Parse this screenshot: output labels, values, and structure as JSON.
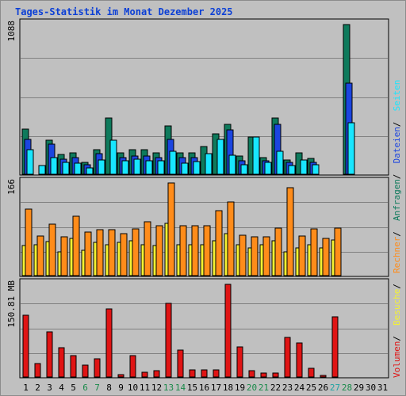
{
  "page": {
    "title": "Tages-Statistik im Monat Dezember 2025"
  },
  "colors": {
    "background": "#c0c0c0",
    "title": "#0b3fd6",
    "grid": "#808080",
    "anfragen": "#0e7a5c",
    "dateien": "#1b45e0",
    "seiten": "#18e6ff",
    "besuche": "#f4f232",
    "rechner": "#ff8c1a",
    "volumen": "#e01414",
    "weekday_label": "#000000",
    "weekend_label": "#1a8a4a",
    "today_label": "#1ea3a3"
  },
  "chart_data": [
    {
      "type": "bar",
      "name": "hits_files_pages",
      "max_label": "1088",
      "ylim": [
        0,
        1088
      ],
      "categories": [
        "1",
        "2",
        "3",
        "4",
        "5",
        "6",
        "7",
        "8",
        "9",
        "10",
        "11",
        "12",
        "13",
        "14",
        "15",
        "16",
        "17",
        "18",
        "19",
        "20",
        "21",
        "22",
        "23",
        "24",
        "25",
        "26",
        "27",
        "28",
        "29",
        "30",
        "31"
      ],
      "legend": [
        "Anfragen",
        "Dateien",
        "Seiten"
      ],
      "legend_sep": " / ",
      "series": [
        {
          "name": "Anfragen",
          "color": "#0e7a5c",
          "values": [
            330,
            0,
            246,
            143,
            155,
            85,
            176,
            408,
            155,
            176,
            176,
            155,
            351,
            155,
            155,
            203,
            295,
            362,
            130,
            273,
            123,
            408,
            102,
            155,
            113,
            0,
            0,
            1088,
            0,
            0,
            0
          ]
        },
        {
          "name": "Dateien",
          "color": "#1b45e0",
          "values": [
            253,
            0,
            218,
            110,
            120,
            70,
            148,
            0,
            120,
            130,
            130,
            120,
            253,
            120,
            120,
            0,
            0,
            323,
            95,
            0,
            95,
            362,
            85,
            0,
            85,
            0,
            0,
            663,
            0,
            0,
            0
          ]
        },
        {
          "name": "Seiten",
          "color": "#18e6ff",
          "values": [
            176,
            65,
            120,
            84,
            78,
            45,
            103,
            246,
            95,
            110,
            100,
            95,
            169,
            78,
            92,
            148,
            253,
            141,
            70,
            273,
            85,
            169,
            62,
            105,
            70,
            0,
            0,
            375,
            0,
            0,
            0
          ]
        }
      ]
    },
    {
      "type": "bar",
      "name": "visits_hosts",
      "max_label": "166",
      "ylim": [
        0,
        166
      ],
      "categories": [
        "1",
        "2",
        "3",
        "4",
        "5",
        "6",
        "7",
        "8",
        "9",
        "10",
        "11",
        "12",
        "13",
        "14",
        "15",
        "16",
        "17",
        "18",
        "19",
        "20",
        "21",
        "22",
        "23",
        "24",
        "25",
        "26",
        "27",
        "28",
        "29",
        "30",
        "31"
      ],
      "legend": [
        "Besuche",
        "Rechner"
      ],
      "legend_sep": " / ",
      "series": [
        {
          "name": "Besuche",
          "color": "#f4f232",
          "values": [
            54,
            55,
            61,
            43,
            66,
            46,
            60,
            55,
            60,
            63,
            55,
            54,
            94,
            55,
            55,
            55,
            63,
            75,
            55,
            50,
            55,
            62,
            42,
            50,
            55,
            50,
            64,
            0,
            0,
            0,
            0
          ]
        },
        {
          "name": "Rechner",
          "color": "#ff8c1a",
          "values": [
            119,
            71,
            92,
            69,
            106,
            78,
            82,
            82,
            75,
            83,
            96,
            90,
            166,
            90,
            90,
            90,
            116,
            132,
            73,
            69,
            69,
            85,
            158,
            71,
            84,
            66,
            85,
            0,
            0,
            0,
            0
          ]
        }
      ]
    },
    {
      "type": "bar",
      "name": "volume",
      "max_label": "150.81 MB",
      "ylim": [
        0,
        150.81
      ],
      "categories": [
        "1",
        "2",
        "3",
        "4",
        "5",
        "6",
        "7",
        "8",
        "9",
        "10",
        "11",
        "12",
        "13",
        "14",
        "15",
        "16",
        "17",
        "18",
        "19",
        "20",
        "21",
        "22",
        "23",
        "24",
        "25",
        "26",
        "27",
        "28",
        "29",
        "30",
        "31"
      ],
      "legend": [
        "Volumen"
      ],
      "series": [
        {
          "name": "Volumen",
          "unit": "MB",
          "color": "#e01414",
          "values": [
            100.5,
            21.5,
            73.7,
            48.2,
            34.8,
            18.8,
            29.5,
            110.5,
            4.0,
            34.8,
            8.0,
            10.7,
            119.9,
            44.2,
            12.1,
            12.1,
            12.1,
            150.8,
            49.6,
            10.7,
            6.7,
            6.7,
            64.3,
            54.9,
            14.7,
            2.7,
            98.5,
            0,
            0,
            0,
            0
          ]
        }
      ]
    }
  ],
  "x_axis": {
    "labels": [
      "1",
      "2",
      "3",
      "4",
      "5",
      "6",
      "7",
      "8",
      "9",
      "10",
      "11",
      "12",
      "13",
      "14",
      "15",
      "16",
      "17",
      "18",
      "19",
      "20",
      "21",
      "22",
      "23",
      "24",
      "25",
      "26",
      "27",
      "28",
      "29",
      "30",
      "31"
    ],
    "weekend": [
      "6",
      "7",
      "13",
      "14",
      "20",
      "21",
      "27",
      "28"
    ],
    "today": "27"
  }
}
